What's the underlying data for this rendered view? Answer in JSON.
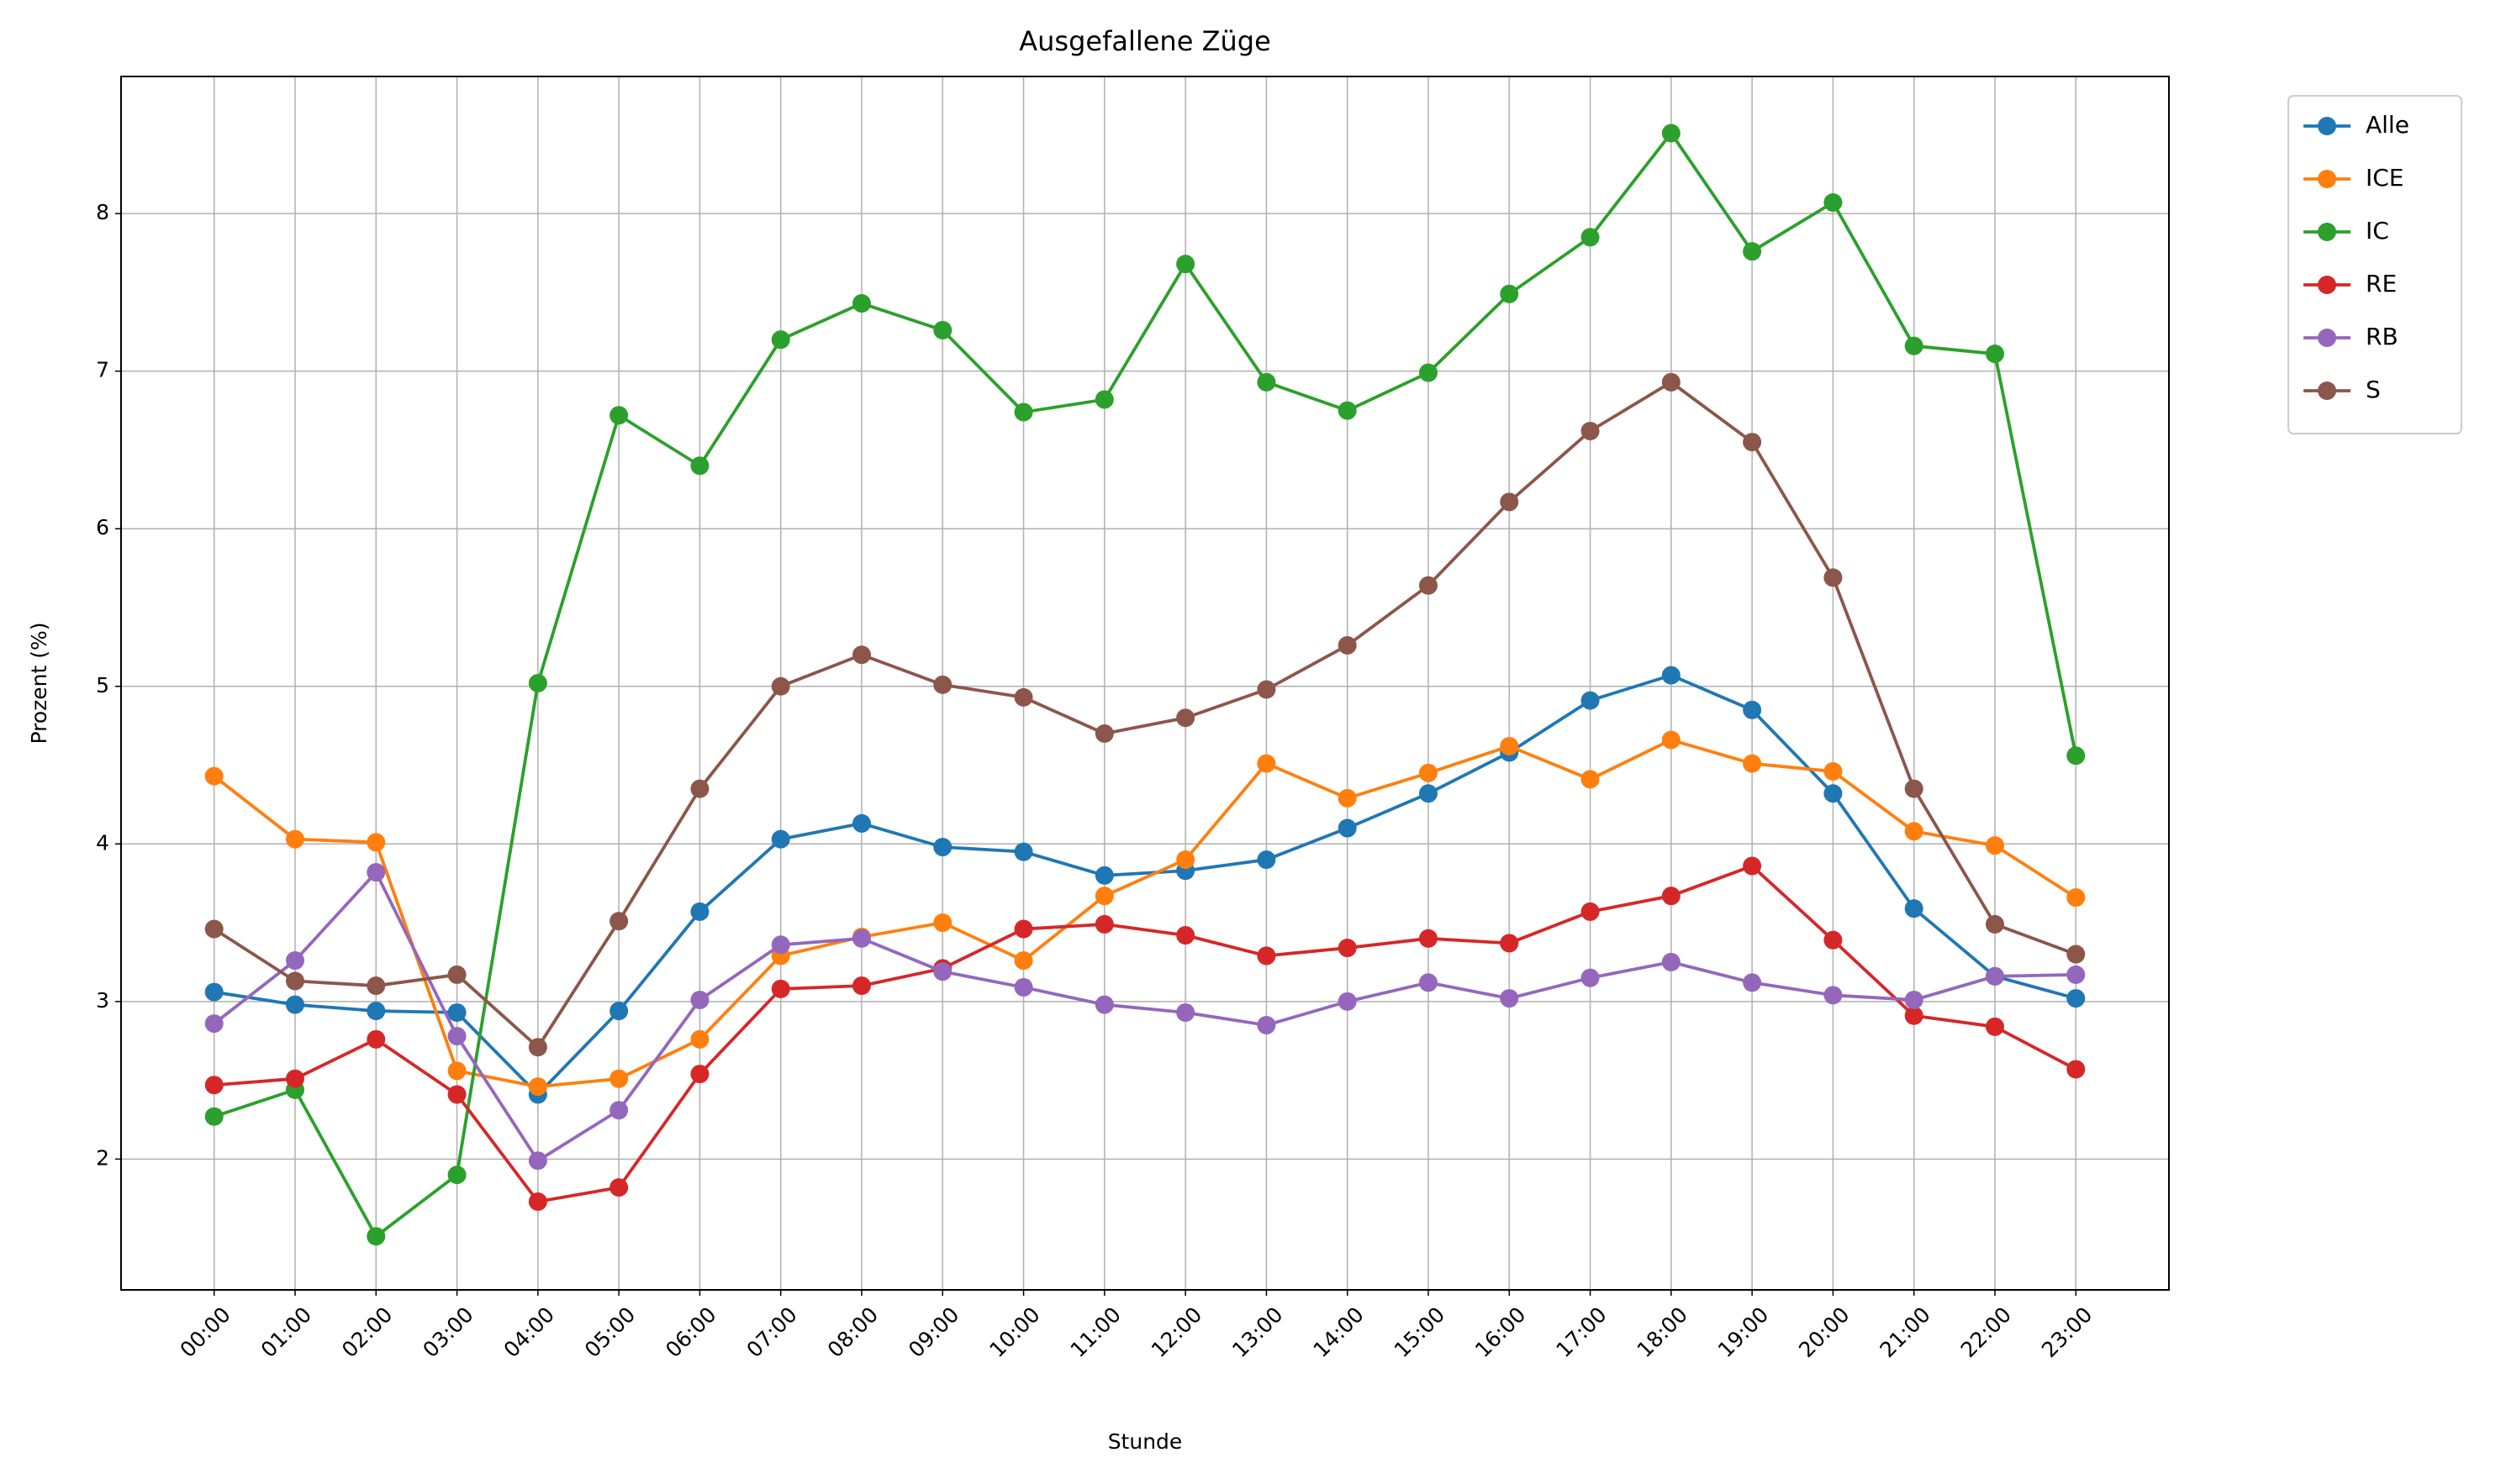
{
  "chart_data": {
    "type": "line",
    "title": "Ausgefallene Züge",
    "xlabel": "Stunde",
    "ylabel": "Prozent (%)",
    "categories": [
      "00:00",
      "01:00",
      "02:00",
      "03:00",
      "04:00",
      "05:00",
      "06:00",
      "07:00",
      "08:00",
      "09:00",
      "10:00",
      "11:00",
      "12:00",
      "13:00",
      "14:00",
      "15:00",
      "16:00",
      "17:00",
      "18:00",
      "19:00",
      "20:00",
      "21:00",
      "22:00",
      "23:00"
    ],
    "series": [
      {
        "name": "Alle",
        "color": "#1f77b4",
        "values": [
          3.06,
          2.98,
          2.94,
          2.93,
          2.41,
          2.94,
          3.57,
          4.03,
          4.13,
          3.98,
          3.95,
          3.8,
          3.83,
          3.9,
          4.1,
          4.32,
          4.58,
          4.91,
          5.07,
          4.85,
          4.32,
          3.59,
          3.16,
          3.02
        ]
      },
      {
        "name": "ICE",
        "color": "#ff7f0e",
        "values": [
          4.43,
          4.03,
          4.01,
          2.56,
          2.46,
          2.51,
          2.76,
          3.29,
          3.41,
          3.5,
          3.26,
          3.67,
          3.9,
          4.51,
          4.29,
          4.45,
          4.62,
          4.41,
          4.66,
          4.51,
          4.46,
          4.08,
          3.99,
          3.66
        ]
      },
      {
        "name": "IC",
        "color": "#2ca02c",
        "values": [
          2.27,
          2.44,
          1.51,
          1.9,
          5.02,
          6.72,
          6.4,
          7.2,
          7.43,
          7.26,
          6.74,
          6.82,
          7.68,
          6.93,
          6.75,
          6.99,
          7.49,
          7.85,
          8.51,
          7.76,
          8.07,
          7.16,
          7.11,
          4.56
        ]
      },
      {
        "name": "RE",
        "color": "#d62728",
        "values": [
          2.47,
          2.51,
          2.76,
          2.41,
          1.73,
          1.82,
          2.54,
          3.08,
          3.1,
          3.21,
          3.46,
          3.49,
          3.42,
          3.29,
          3.34,
          3.4,
          3.37,
          3.57,
          3.67,
          3.86,
          3.39,
          2.91,
          2.84,
          2.57
        ]
      },
      {
        "name": "RB",
        "color": "#9467bd",
        "values": [
          2.86,
          3.26,
          3.82,
          2.78,
          1.99,
          2.31,
          3.01,
          3.36,
          3.4,
          3.19,
          3.09,
          2.98,
          2.93,
          2.85,
          3.0,
          3.12,
          3.02,
          3.15,
          3.25,
          3.12,
          3.04,
          3.01,
          3.16,
          3.17
        ]
      },
      {
        "name": "S",
        "color": "#8c564b",
        "values": [
          3.46,
          3.13,
          3.1,
          3.17,
          2.71,
          3.51,
          4.35,
          5.0,
          5.2,
          5.01,
          4.93,
          4.7,
          4.8,
          4.98,
          5.26,
          5.64,
          6.17,
          6.62,
          6.93,
          6.55,
          5.69,
          4.35,
          3.49,
          3.3
        ]
      }
    ],
    "ylim": [
      1.17,
      8.87
    ],
    "yticks": [
      2,
      3,
      4,
      5,
      6,
      7,
      8
    ],
    "grid": true,
    "legend": "outside",
    "marker": "circle"
  }
}
